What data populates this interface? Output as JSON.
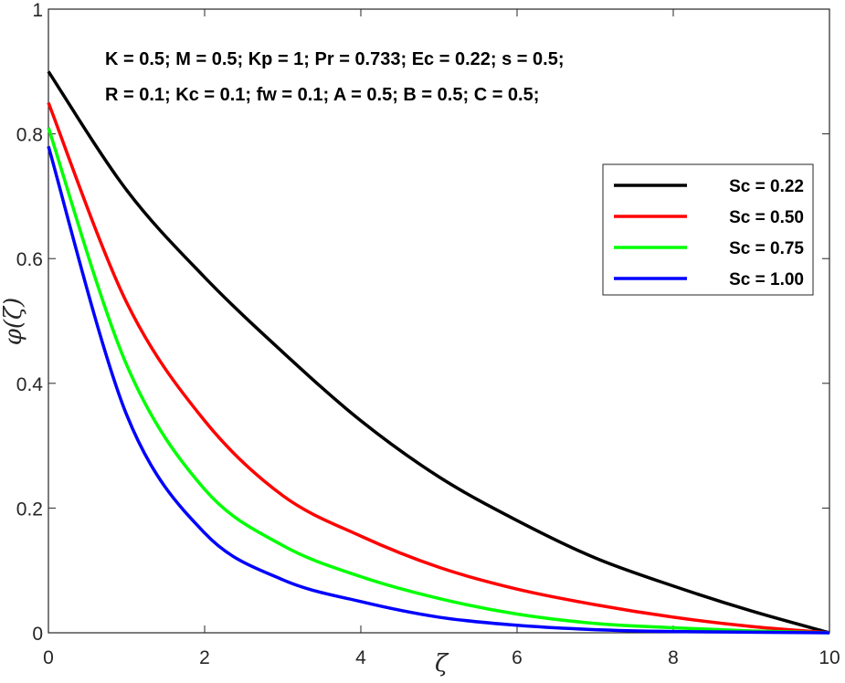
{
  "chart_data": {
    "type": "line",
    "xlabel": "ζ",
    "ylabel": "φ(ζ)",
    "xlim": [
      0,
      10
    ],
    "ylim": [
      0,
      1
    ],
    "xticks": [
      "0",
      "2",
      "4",
      "6",
      "8",
      "10"
    ],
    "yticks": [
      "0",
      "0.2",
      "0.4",
      "0.6",
      "0.8",
      "1"
    ],
    "grid": false,
    "legend_position": "top-right",
    "annotations": [
      "K = 0.5; M = 0.5; Kp = 1; Pr = 0.733; Ec = 0.22; s = 0.5;",
      "R = 0.1; Kc = 0.1; fw = 0.1; A = 0.5; B = 0.5; C = 0.5;"
    ],
    "x": [
      0,
      1,
      2,
      3,
      4,
      5,
      6,
      7,
      8,
      9,
      10
    ],
    "series": [
      {
        "name": "Sc = 0.22",
        "color": "#000000",
        "values": [
          0.9,
          0.71,
          0.57,
          0.45,
          0.34,
          0.25,
          0.18,
          0.12,
          0.075,
          0.035,
          0.0
        ]
      },
      {
        "name": "Sc = 0.50",
        "color": "#ff0000",
        "values": [
          0.85,
          0.53,
          0.34,
          0.22,
          0.155,
          0.105,
          0.07,
          0.045,
          0.025,
          0.01,
          0.0
        ]
      },
      {
        "name": "Sc = 0.75",
        "color": "#00ff00",
        "values": [
          0.81,
          0.43,
          0.23,
          0.14,
          0.09,
          0.055,
          0.03,
          0.015,
          0.008,
          0.003,
          0.0
        ]
      },
      {
        "name": "Sc = 1.00",
        "color": "#0000ff",
        "values": [
          0.78,
          0.35,
          0.16,
          0.085,
          0.05,
          0.025,
          0.012,
          0.005,
          0.002,
          0.001,
          0.0
        ]
      }
    ]
  }
}
